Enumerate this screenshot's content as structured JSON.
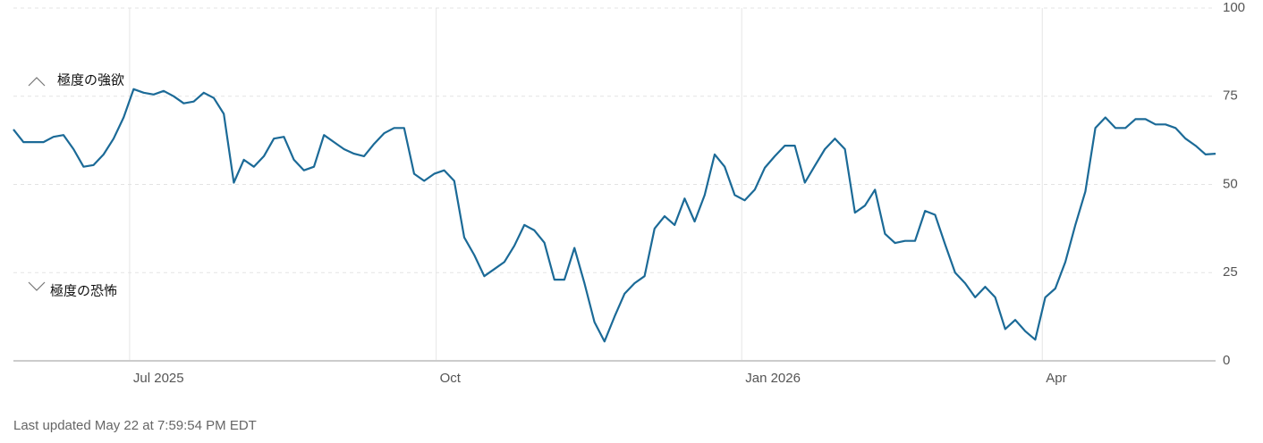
{
  "chart_data": {
    "type": "line",
    "annotations": [
      "極度の強欲",
      "極度の恐怖"
    ],
    "footer": "Last updated May 22 at 7:59:54 PM EDT",
    "series": [
      {
        "color": "#1b6a97",
        "values": [
          65.6,
          62,
          62,
          62,
          63.5,
          64,
          60,
          55,
          55.5,
          58.5,
          63,
          69,
          77,
          76,
          75.5,
          76.5,
          75,
          73,
          73.5,
          76,
          74.5,
          70,
          50.5,
          57,
          55,
          58,
          63,
          63.5,
          57,
          54,
          55,
          64,
          62,
          60,
          58.7,
          58,
          61.5,
          64.5,
          66,
          66,
          53,
          51,
          53,
          54,
          51,
          35,
          30,
          24,
          26,
          28,
          32.6,
          38.5,
          37,
          33.5,
          23,
          23,
          32,
          22,
          11,
          5.5,
          12.5,
          19,
          22,
          24,
          37.5,
          41,
          38.5,
          46,
          39.5,
          47,
          58.5,
          55,
          47,
          45.5,
          48.5,
          54.7,
          58,
          61,
          61,
          50.5,
          55.3,
          60,
          63,
          60,
          42,
          44,
          48.5,
          36,
          33.4,
          34,
          34,
          42.5,
          41.4,
          33,
          25,
          22,
          18,
          21,
          18,
          9,
          11.6,
          8.4,
          6,
          18,
          20.5,
          28,
          38.5,
          48,
          66,
          69,
          66,
          66,
          68.5,
          68.5,
          67,
          67,
          66,
          63,
          61,
          58.5,
          58.7
        ]
      }
    ],
    "xlim": [
      0,
      120
    ],
    "xticks": [
      {
        "value": 11.6,
        "label": "Jul 2025"
      },
      {
        "value": 42.2,
        "label": "Oct"
      },
      {
        "value": 72.7,
        "label": "Jan 2026"
      },
      {
        "value": 102.7,
        "label": "Apr"
      }
    ],
    "ylim": [
      0,
      100
    ],
    "yticks": [
      0,
      25,
      50,
      75,
      100
    ],
    "grid": true
  }
}
